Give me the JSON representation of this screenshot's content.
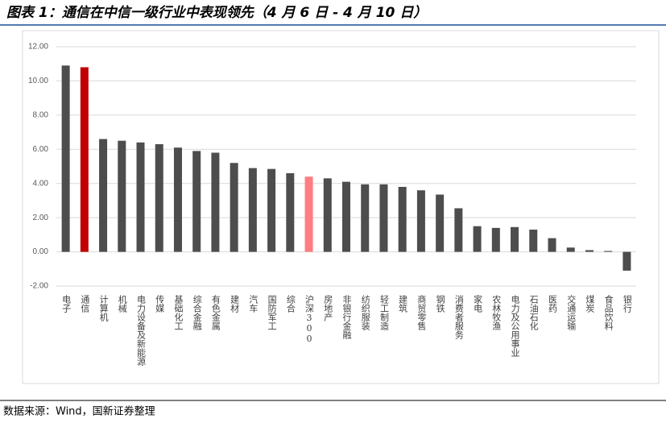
{
  "title": "图表 1：通信在中信一级行业中表现领先（4 月 6 日 - 4 月 10 日）",
  "source": "数据来源：Wind，国新证券整理",
  "chart_data": {
    "type": "bar",
    "categories": [
      "电子",
      "通信",
      "计算机",
      "机械",
      "电力设备及新能源",
      "传媒",
      "基础化工",
      "综合金融",
      "有色金属",
      "建材",
      "汽车",
      "国防军工",
      "综合",
      "沪深300",
      "房地产",
      "非银行金融",
      "纺织服装",
      "轻工制造",
      "建筑",
      "商贸零售",
      "钢铁",
      "消费者服务",
      "家电",
      "农林牧渔",
      "电力及公用事业",
      "石油石化",
      "医药",
      "交通运输",
      "煤炭",
      "食品饮料",
      "银行"
    ],
    "values": [
      10.9,
      10.8,
      6.6,
      6.5,
      6.4,
      6.3,
      6.1,
      5.9,
      5.8,
      5.2,
      4.9,
      4.85,
      4.6,
      4.4,
      4.3,
      4.1,
      3.95,
      3.95,
      3.8,
      3.6,
      3.35,
      2.55,
      1.5,
      1.4,
      1.45,
      1.3,
      0.8,
      0.25,
      0.1,
      0.05,
      -1.1
    ],
    "colors": [
      "#4d4d4d",
      "#c00000",
      "#4d4d4d",
      "#4d4d4d",
      "#4d4d4d",
      "#4d4d4d",
      "#4d4d4d",
      "#4d4d4d",
      "#4d4d4d",
      "#4d4d4d",
      "#4d4d4d",
      "#4d4d4d",
      "#4d4d4d",
      "#ff7c80",
      "#4d4d4d",
      "#4d4d4d",
      "#4d4d4d",
      "#4d4d4d",
      "#4d4d4d",
      "#4d4d4d",
      "#4d4d4d",
      "#4d4d4d",
      "#4d4d4d",
      "#4d4d4d",
      "#4d4d4d",
      "#4d4d4d",
      "#4d4d4d",
      "#4d4d4d",
      "#4d4d4d",
      "#4d4d4d",
      "#4d4d4d"
    ],
    "ylim": [
      -2,
      12
    ],
    "yticks": [
      {
        "value": -2,
        "label": "-2.00"
      },
      {
        "value": 0,
        "label": "0.00"
      },
      {
        "value": 2,
        "label": "2.00"
      },
      {
        "value": 4,
        "label": "4.00"
      },
      {
        "value": 6,
        "label": "6.00"
      },
      {
        "value": 8,
        "label": "8.00"
      },
      {
        "value": 10,
        "label": "10.00"
      },
      {
        "value": 12,
        "label": "12.00"
      }
    ],
    "grid": true
  }
}
